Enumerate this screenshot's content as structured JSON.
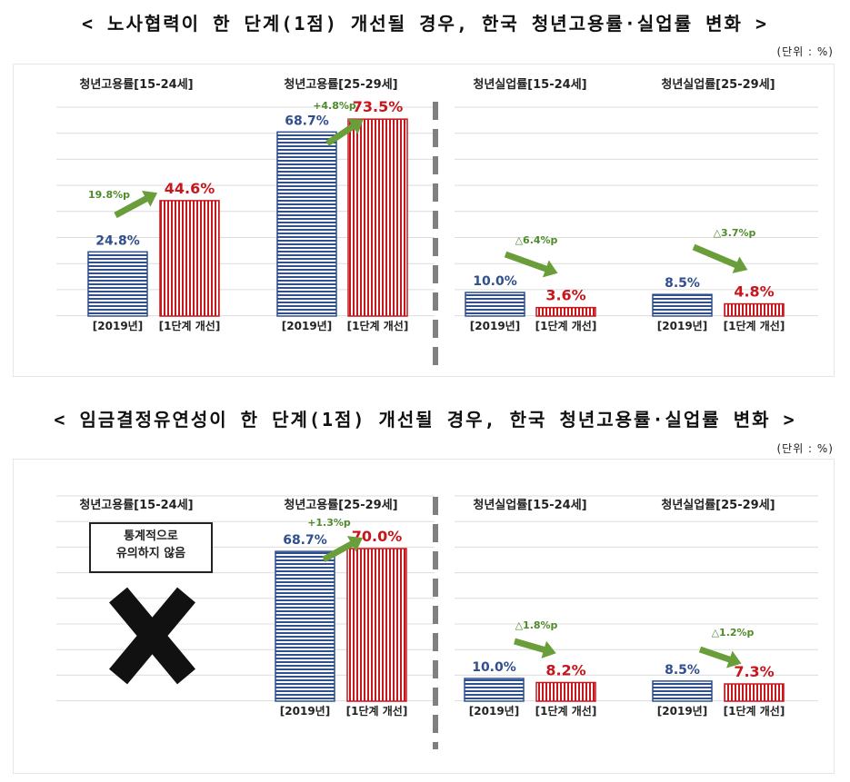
{
  "charts": [
    {
      "title": "< 노사협력이 한 단계(1점) 개선될 경우, 한국 청년고용률·실업률 변화 >",
      "unit": "(단위 : %)",
      "groups": [
        {
          "label": "청년고용률[15-24세]",
          "change": "19.8%p",
          "categories": [
            "[2019년]",
            "[1단계 개선]"
          ],
          "values": [
            24.8,
            44.6
          ],
          "value_labels": [
            "24.8%",
            "44.6%"
          ]
        },
        {
          "label": "청년고용률[25-29세]",
          "change": "+4.8%p",
          "categories": [
            "[2019년]",
            "[1단계 개선]"
          ],
          "values": [
            68.7,
            73.5
          ],
          "value_labels": [
            "68.7%",
            "73.5%"
          ]
        },
        {
          "label": "청년실업률[15-24세]",
          "change": "△6.4%p",
          "categories": [
            "[2019년]",
            "[1단계 개선]"
          ],
          "values": [
            10.0,
            3.6
          ],
          "value_labels": [
            "10.0%",
            "3.6%"
          ]
        },
        {
          "label": "청년실업률[25-29세]",
          "change": "△3.7%p",
          "categories": [
            "[2019년]",
            "[1단계 개선]"
          ],
          "values": [
            8.5,
            4.8
          ],
          "value_labels": [
            "8.5%",
            "4.8%"
          ]
        }
      ]
    },
    {
      "title": "< 임금결정유연성이 한 단계(1점) 개선될 경우, 한국 청년고용률·실업률 변화 >",
      "unit": "(단위 : %)",
      "groups": [
        {
          "label": "청년고용률[15-24세]",
          "not_significant": true,
          "note_line1": "통계적으로",
          "note_line2": "유의하지 않음"
        },
        {
          "label": "청년고용률[25-29세]",
          "change": "+1.3%p",
          "categories": [
            "[2019년]",
            "[1단계 개선]"
          ],
          "values": [
            68.7,
            70.0
          ],
          "value_labels": [
            "68.7%",
            "70.0%"
          ]
        },
        {
          "label": "청년실업률[15-24세]",
          "change": "△1.8%p",
          "categories": [
            "[2019년]",
            "[1단계 개선]"
          ],
          "values": [
            10.0,
            8.2
          ],
          "value_labels": [
            "10.0%",
            "8.2%"
          ]
        },
        {
          "label": "청년실업률[25-29세]",
          "change": "△1.2%p",
          "categories": [
            "[2019년]",
            "[1단계 개선]"
          ],
          "values": [
            8.5,
            7.3
          ],
          "value_labels": [
            "8.5%",
            "7.3%"
          ]
        }
      ]
    }
  ],
  "chart_data": [
    {
      "type": "bar",
      "title": "< 노사협력이 한 단계(1점) 개선될 경우, 한국 청년고용률·실업률 변화 >",
      "categories": [
        "[2019년]",
        "[1단계 개선]"
      ],
      "series": [
        {
          "name": "청년고용률[15-24세]",
          "values": [
            24.8,
            44.6
          ]
        },
        {
          "name": "청년고용률[25-29세]",
          "values": [
            68.7,
            73.5
          ]
        },
        {
          "name": "청년실업률[15-24세]",
          "values": [
            10.0,
            3.6
          ]
        },
        {
          "name": "청년실업률[25-29세]",
          "values": [
            8.5,
            4.8
          ]
        }
      ],
      "ylabel": "",
      "xlabel": "",
      "grid": true
    },
    {
      "type": "bar",
      "title": "< 임금결정유연성이 한 단계(1점) 개선될 경우, 한국 청년고용률·실업률 변화 >",
      "categories": [
        "[2019년]",
        "[1단계 개선]"
      ],
      "series": [
        {
          "name": "청년고용률[25-29세]",
          "values": [
            68.7,
            70.0
          ]
        },
        {
          "name": "청년실업률[15-24세]",
          "values": [
            10.0,
            8.2
          ]
        },
        {
          "name": "청년실업률[25-29세]",
          "values": [
            8.5,
            7.3
          ]
        }
      ],
      "ylabel": "",
      "xlabel": "",
      "grid": true
    }
  ],
  "colors": {
    "base_bar": "#2f4f8f",
    "improved_bar": "#c8161d",
    "arrow": "#6a9e3a",
    "change_text": "#4f8a2b",
    "divider": "#808080"
  }
}
